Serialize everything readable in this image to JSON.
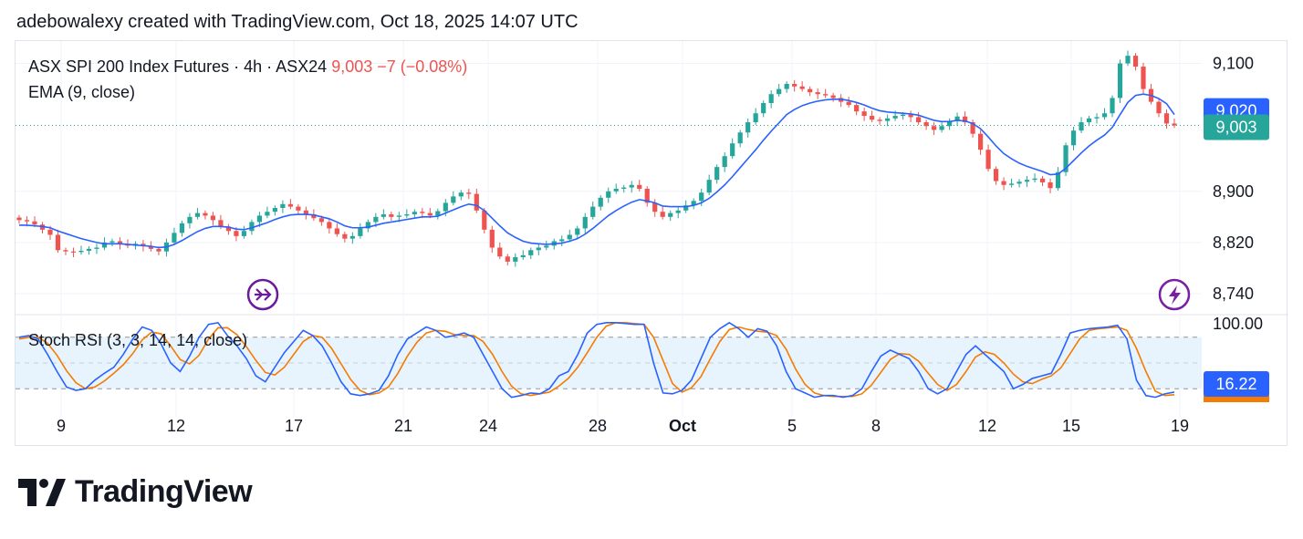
{
  "header": {
    "text": "adebowalexy created with TradingView.com, Oct 18, 2025 14:07 UTC"
  },
  "legend": {
    "symbol": "ASX SPI 200 Index Futures · 4h · ASX24",
    "price": "9,003",
    "change": "−7 (−0.08%)",
    "ema_label": "EMA (9, close)",
    "stoch_label": "Stoch RSI (3, 3, 14, 14, close)"
  },
  "price_badges": {
    "ema": "9,020",
    "last": "9,003",
    "stoch": "16.22"
  },
  "colors": {
    "up": "#26a69a",
    "down": "#ef5350",
    "ema": "#2962ff",
    "k_line": "#2962ff",
    "d_line": "#f57c00",
    "band": "#e3f2fd",
    "accent_icon": "#7b1fa2"
  },
  "logo": {
    "text": "TradingView"
  },
  "icons": [
    "replay-arrow-icon",
    "lightning-icon",
    "tradingview-logo-icon"
  ],
  "chart_data": [
    {
      "type": "candlestick",
      "title": "ASX SPI 200 Index Futures · 4h · ASX24",
      "y_ticks": [
        "9,100",
        "8,900",
        "8,820",
        "8,740"
      ],
      "y_tick_values": [
        9100,
        8900,
        8820,
        8740
      ],
      "x_ticks": [
        "9",
        "12",
        "17",
        "21",
        "24",
        "28",
        "Oct",
        "5",
        "8",
        "12",
        "15",
        "19"
      ],
      "ylim": [
        8710,
        9135
      ],
      "last_price": 9003,
      "ema_last": 9020,
      "series": [
        {
          "name": "Close",
          "values": [
            8855,
            8853,
            8848,
            8840,
            8832,
            8808,
            8806,
            8805,
            8807,
            8810,
            8812,
            8820,
            8822,
            8817,
            8815,
            8818,
            8814,
            8810,
            8806,
            8820,
            8835,
            8850,
            8860,
            8866,
            8862,
            8855,
            8845,
            8838,
            8830,
            8838,
            8852,
            8862,
            8868,
            8874,
            8880,
            8876,
            8870,
            8864,
            8858,
            8852,
            8842,
            8833,
            8826,
            8830,
            8842,
            8852,
            8860,
            8864,
            8860,
            8862,
            8864,
            8868,
            8866,
            8862,
            8869,
            8882,
            8892,
            8898,
            8896,
            8870,
            8840,
            8812,
            8798,
            8790,
            8797,
            8800,
            8808,
            8812,
            8815,
            8822,
            8825,
            8832,
            8842,
            8860,
            8876,
            8890,
            8900,
            8904,
            8906,
            8910,
            8904,
            8882,
            8868,
            8860,
            8866,
            8870,
            8878,
            8885,
            8898,
            8918,
            8938,
            8955,
            8975,
            8992,
            9008,
            9022,
            9038,
            9052,
            9060,
            9068,
            9064,
            9060,
            9055,
            9052,
            9050,
            9046,
            9040,
            9035,
            9025,
            9018,
            9012,
            9010,
            9014,
            9018,
            9020,
            9016,
            9008,
            9002,
            8996,
            9002,
            9010,
            9017,
            9008,
            8990,
            8965,
            8935,
            8916,
            8910,
            8912,
            8915,
            8918,
            8920,
            8914,
            8905,
            8930,
            8972,
            8995,
            9008,
            9014,
            9016,
            9022,
            9046,
            9100,
            9112,
            9095,
            9060,
            9040,
            9022,
            9006,
            9003
          ]
        },
        {
          "name": "EMA (9, close)",
          "values": [
            8847,
            8847,
            8846,
            8845,
            8843,
            8838,
            8834,
            8830,
            8826,
            8823,
            8820,
            8818,
            8818,
            8818,
            8817,
            8816,
            8815,
            8814,
            8812,
            8813,
            8817,
            8823,
            8830,
            8837,
            8842,
            8845,
            8845,
            8844,
            8841,
            8840,
            8843,
            8847,
            8851,
            8856,
            8860,
            8863,
            8864,
            8864,
            8863,
            8860,
            8857,
            8852,
            8846,
            8843,
            8843,
            8844,
            8847,
            8850,
            8852,
            8854,
            8856,
            8858,
            8860,
            8860,
            8861,
            8866,
            8871,
            8876,
            8880,
            8878,
            8870,
            8858,
            8846,
            8835,
            8828,
            8822,
            8819,
            8818,
            8817,
            8818,
            8819,
            8822,
            8826,
            8833,
            8842,
            8852,
            8862,
            8870,
            8877,
            8883,
            8887,
            8885,
            8882,
            8877,
            8876,
            8876,
            8876,
            8878,
            8882,
            8889,
            8899,
            8910,
            8923,
            8937,
            8951,
            8965,
            8980,
            8994,
            9007,
            9020,
            9028,
            9034,
            9038,
            9041,
            9043,
            9044,
            9044,
            9042,
            9039,
            9035,
            9030,
            9026,
            9024,
            9023,
            9022,
            9021,
            9019,
            9015,
            9011,
            9009,
            9009,
            9011,
            9010,
            9006,
            8998,
            8985,
            8971,
            8959,
            8951,
            8944,
            8939,
            8935,
            8931,
            8926,
            8927,
            8936,
            8948,
            8960,
            8971,
            8980,
            8988,
            9000,
            9020,
            9039,
            9050,
            9052,
            9050,
            9045,
            9037,
            9020
          ]
        }
      ]
    },
    {
      "type": "line",
      "title": "Stoch RSI (3, 3, 14, 14, close)",
      "y_ticks": [
        "100.00"
      ],
      "ylim": [
        0,
        100
      ],
      "bands": [
        20,
        80
      ],
      "last_value": 16.22,
      "series": [
        {
          "name": "K",
          "values": [
            80,
            82,
            78,
            60,
            40,
            22,
            18,
            20,
            30,
            38,
            45,
            60,
            78,
            92,
            88,
            72,
            50,
            40,
            58,
            80,
            95,
            97,
            82,
            70,
            55,
            35,
            28,
            45,
            62,
            75,
            88,
            82,
            70,
            50,
            28,
            14,
            12,
            14,
            18,
            35,
            60,
            78,
            85,
            92,
            88,
            80,
            82,
            85,
            80,
            60,
            40,
            20,
            10,
            12,
            15,
            14,
            20,
            35,
            40,
            60,
            85,
            95,
            97,
            97,
            96,
            95,
            95,
            50,
            15,
            14,
            18,
            30,
            55,
            80,
            90,
            97,
            90,
            80,
            90,
            87,
            70,
            40,
            20,
            15,
            10,
            12,
            12,
            10,
            12,
            20,
            40,
            58,
            65,
            60,
            55,
            40,
            20,
            14,
            20,
            40,
            60,
            70,
            60,
            50,
            40,
            20,
            25,
            32,
            35,
            38,
            60,
            85,
            88,
            90,
            91,
            92,
            94,
            78,
            30,
            12,
            10,
            14,
            16
          ]
        },
        {
          "name": "D",
          "values": [
            78,
            80,
            80,
            73,
            59,
            41,
            27,
            20,
            22,
            29,
            38,
            48,
            61,
            77,
            86,
            84,
            70,
            54,
            49,
            59,
            78,
            91,
            91,
            83,
            69,
            53,
            39,
            36,
            45,
            60,
            75,
            82,
            80,
            67,
            49,
            31,
            18,
            13,
            15,
            22,
            38,
            58,
            74,
            85,
            88,
            87,
            83,
            82,
            82,
            75,
            60,
            40,
            23,
            14,
            12,
            14,
            16,
            23,
            32,
            45,
            62,
            80,
            93,
            97,
            97,
            96,
            95,
            80,
            53,
            26,
            16,
            21,
            34,
            55,
            75,
            89,
            92,
            89,
            87,
            86,
            82,
            66,
            43,
            25,
            15,
            12,
            11,
            11,
            11,
            14,
            24,
            39,
            54,
            61,
            60,
            52,
            38,
            25,
            18,
            25,
            40,
            57,
            63,
            60,
            50,
            37,
            28,
            26,
            31,
            35,
            44,
            61,
            78,
            88,
            90,
            91,
            92,
            88,
            67,
            40,
            17,
            12,
            13
          ]
        }
      ]
    }
  ]
}
